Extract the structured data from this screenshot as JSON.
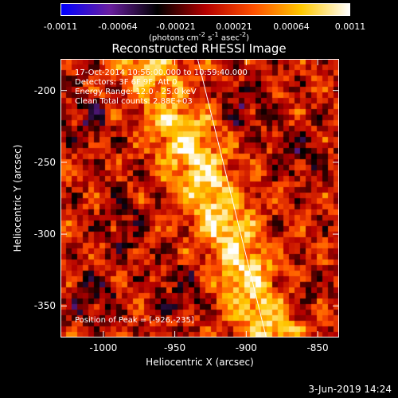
{
  "colorbar": {
    "ticks": [
      "-0.0011",
      "-0.00064",
      "-0.00021",
      "0.00021",
      "0.00064",
      "0.0011"
    ],
    "units_prefix": "(photons cm",
    "units_exp1": "-2",
    "units_mid": " s",
    "units_exp2": "-1",
    "units_mid2": " asec",
    "units_exp3": "-2",
    "units_suffix": ")"
  },
  "info": {
    "time": "17-Oct-2014 10:56:00.000 to 10:59:40.000",
    "detectors": "Detectors: 3F 6F 9F, Att 0",
    "energy": "Energy Range: 12.0 - 25.0 keV",
    "clean": "Clean     Total counts: 2.88E+03",
    "peak": "Position of Peak = [-926,-235]"
  },
  "footer": "3-Jun-2019 14:24",
  "chart_data": {
    "type": "heatmap",
    "title": "Reconstructed RHESSI Image",
    "xlabel": "Heliocentric X (arcsec)",
    "ylabel": "Heliocentric Y (arcsec)",
    "xlim": [
      -1030,
      -835
    ],
    "ylim": [
      -372,
      -178
    ],
    "xticks": [
      "-1000",
      "-950",
      "-900",
      "-850"
    ],
    "yticks": [
      "-200",
      "-250",
      "-300",
      "-350"
    ],
    "xtick_values": [
      -1000,
      -950,
      -900,
      -850
    ],
    "ytick_values": [
      -200,
      -250,
      -300,
      -350
    ],
    "value_range": [
      -0.0011,
      0.0011
    ],
    "peak_position": [
      -926,
      -235
    ],
    "limb_line": [
      [
        -934,
        -178
      ],
      [
        -886,
        -372
      ]
    ],
    "colormap": [
      "#0000ff",
      "#6a1fa0",
      "#000000",
      "#b40000",
      "#ff5000",
      "#ffc800",
      "#ffffff"
    ]
  }
}
